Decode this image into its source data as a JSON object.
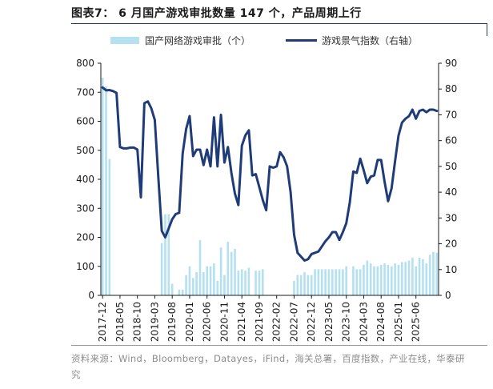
{
  "header": {
    "title": "图表7：  6 月国产游戏审批数量 147 个，产品周期上行"
  },
  "footer": {
    "source": "资料来源：Wind，Bloomberg，Datayes，iFind，海关总署，百度指数，产业在线，华泰研究"
  },
  "colors": {
    "bar": "#b4e0f0",
    "line": "#1f3c78"
  },
  "chart_data": {
    "type": "bar+line",
    "x_tick_labels": [
      "2017-12",
      "2018-05",
      "2018-10",
      "2019-03",
      "2019-08",
      "2020-01",
      "2020-06",
      "2020-11",
      "2021-04",
      "2021-09",
      "2022-02",
      "2022-07",
      "2022-12",
      "2023-05",
      "2023-10",
      "2024-03",
      "2024-08",
      "2025-01",
      "2025-06"
    ],
    "y_left": {
      "ylim": [
        0,
        800
      ],
      "ticks": [
        0,
        100,
        200,
        300,
        400,
        500,
        600,
        700,
        800
      ]
    },
    "y_right": {
      "ylim": [
        0,
        90
      ],
      "ticks": [
        0,
        10,
        20,
        30,
        40,
        50,
        60,
        70,
        80,
        90
      ]
    },
    "legend": {
      "position": "top",
      "entries": [
        "国产网络游戏审批（个）",
        "游戏景气指数（右轴）"
      ]
    },
    "series": [
      {
        "name": "国产网络游戏审批（个）",
        "kind": "bar",
        "axis": "left",
        "start": "2017-12",
        "values": [
          750,
          720,
          470,
          0,
          0,
          0,
          0,
          0,
          0,
          0,
          0,
          0,
          0,
          0,
          0,
          0,
          0,
          180,
          280,
          280,
          40,
          0,
          20,
          20,
          70,
          100,
          60,
          80,
          190,
          80,
          100,
          100,
          110,
          50,
          165,
          70,
          185,
          150,
          160,
          85,
          90,
          85,
          95,
          0,
          85,
          85,
          90,
          0,
          0,
          0,
          0,
          0,
          0,
          0,
          0,
          50,
          70,
          70,
          80,
          70,
          70,
          90,
          90,
          90,
          90,
          90,
          90,
          90,
          90,
          90,
          100,
          0,
          100,
          90,
          90,
          105,
          120,
          110,
          100,
          100,
          105,
          110,
          105,
          100,
          110,
          105,
          115,
          115,
          120,
          130,
          100,
          130,
          125,
          110,
          140,
          150,
          147
        ]
      },
      {
        "name": "游戏景气指数（右轴）",
        "kind": "line",
        "axis": "right",
        "start": "2017-12",
        "values": [
          80.6,
          79.5,
          79.6,
          79.2,
          78.5,
          57.5,
          57.0,
          57.0,
          57.3,
          57.3,
          56.5,
          38.0,
          74.5,
          75.2,
          72.5,
          68.0,
          46.0,
          25.0,
          22.5,
          26.0,
          29.5,
          31.5,
          32.0,
          55.0,
          64.5,
          69.5,
          54.0,
          56.5,
          56.5,
          50.5,
          56.5,
          50.0,
          69.0,
          50.0,
          70.0,
          51.5,
          57.5,
          47.5,
          39.5,
          35.0,
          58.0,
          62.0,
          64.0,
          46.5,
          47.0,
          42.0,
          37.0,
          33.0,
          50.0,
          49.5,
          50.0,
          55.5,
          53.5,
          50.0,
          40.0,
          23.5,
          16.5,
          15.0,
          13.5,
          14.0,
          16.0,
          16.5,
          17.0,
          19.0,
          21.0,
          22.5,
          24.5,
          24.5,
          21.5,
          24.5,
          28.0,
          36.0,
          48.0,
          47.5,
          53.0,
          48.5,
          43.5,
          46.0,
          46.5,
          52.5,
          52.5,
          44.0,
          36.5,
          41.5,
          52.0,
          62.0,
          67.0,
          68.5,
          69.5,
          72.0,
          68.5,
          71.5,
          72.0,
          71.0,
          72.0,
          72.0,
          71.5
        ]
      }
    ]
  }
}
